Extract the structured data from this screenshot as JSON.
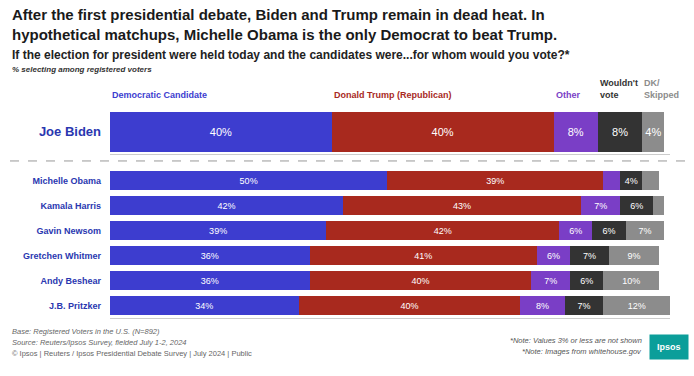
{
  "chart_data": {
    "type": "bar",
    "title": "After the first presidential debate, Biden and Trump remain in dead heat. In hypothetical matchups, Michelle Obama is the only Democrat to beat Trump.",
    "subtitle": "If the election for president were held today and the candidates were...for whom would you vote?*",
    "axis_note": "% selecting among registered voters",
    "footnotes_left": [
      "Base: Registered Voters in the U.S. (N=892)",
      "Source: Reuters/Ipsos Survey, fielded July 1-2, 2024",
      "© Ipsos | Reuters / Ipsos Presidential Debate Survey | July 2024 | Public"
    ],
    "footnotes_right": [
      "*Note: Values 3% or less are not shown",
      "*Note: Images from whitehouse.gov"
    ],
    "logo": "Ipsos",
    "orientation": "horizontal",
    "stacked": true,
    "data_labels": true,
    "tick_labels": "y",
    "grid": false,
    "xlim": [
      0,
      101
    ],
    "categories": [
      "Joe Biden",
      "Michelle Obama",
      "Kamala Harris",
      "Gavin Newsom",
      "Gretchen Whitmer",
      "Andy Beshear",
      "J.B. Pritzker"
    ],
    "series": [
      {
        "name": "Democratic Candidate",
        "color": "#3d3dcf",
        "values": [
          40,
          50,
          42,
          39,
          36,
          36,
          34
        ],
        "value_labels": [
          "40%",
          "50%",
          "42%",
          "39%",
          "36%",
          "36%",
          "34%"
        ]
      },
      {
        "name": "Donald Trump (Republican)",
        "color": "#a8291e",
        "values": [
          40,
          39,
          43,
          42,
          41,
          40,
          40
        ],
        "value_labels": [
          "40%",
          "39%",
          "43%",
          "42%",
          "41%",
          "40%",
          "40%"
        ]
      },
      {
        "name": "Other",
        "color": "#7a3ec6",
        "values": [
          8,
          3,
          7,
          6,
          6,
          7,
          8
        ],
        "value_labels": [
          "8%",
          null,
          "7%",
          "6%",
          "6%",
          "7%",
          "8%"
        ]
      },
      {
        "name": "Wouldn't vote",
        "color": "#333333",
        "values": [
          8,
          4,
          6,
          6,
          7,
          6,
          7
        ],
        "value_labels": [
          "8%",
          "4%",
          "6%",
          "6%",
          "7%",
          "6%",
          "7%"
        ]
      },
      {
        "name": "DK/Skipped",
        "color": "#8c8c8c",
        "values": [
          4,
          3,
          2,
          7,
          9,
          10,
          12
        ],
        "value_labels": [
          "4%",
          null,
          null,
          "7%",
          "9%",
          "10%",
          "12%"
        ]
      }
    ]
  }
}
